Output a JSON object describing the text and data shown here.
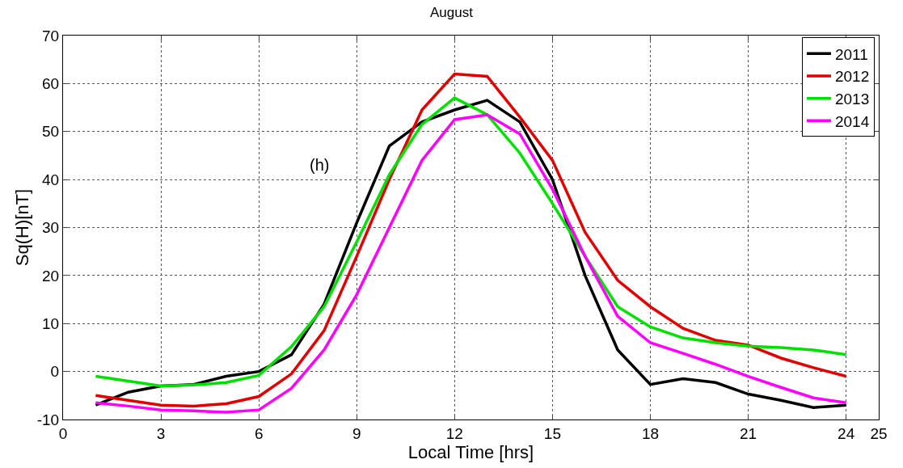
{
  "chart_data": {
    "type": "line",
    "title": "August",
    "xlabel": "Local Time [hrs]",
    "ylabel": "Sq(H)[nT]",
    "annotations": [
      "(h)"
    ],
    "x": [
      1,
      2,
      3,
      4,
      5,
      6,
      7,
      8,
      9,
      10,
      11,
      12,
      13,
      14,
      15,
      16,
      17,
      18,
      19,
      20,
      21,
      22,
      23,
      24
    ],
    "series": [
      {
        "name": "2011",
        "color": "#000000",
        "values": [
          -7,
          -4.3,
          -3,
          -2.7,
          -1,
          0,
          3.5,
          14,
          31,
          47,
          52,
          54.5,
          56.5,
          52,
          40,
          20,
          4.5,
          -2.7,
          -1.5,
          -2.3,
          -4.7,
          -6,
          -7.5,
          -7
        ]
      },
      {
        "name": "2012",
        "color": "#e00000",
        "values": [
          -5,
          -6,
          -7,
          -7.2,
          -6.7,
          -5.2,
          -0.5,
          8.5,
          24,
          40,
          54.5,
          62,
          61.5,
          53,
          44,
          29,
          19,
          13.5,
          9,
          6.5,
          5.5,
          2.8,
          0.8,
          -1
        ]
      },
      {
        "name": "2013",
        "color": "#00e000",
        "values": [
          -1,
          -2,
          -3,
          -2.8,
          -2.3,
          -0.8,
          5.2,
          13.5,
          27,
          41,
          51.5,
          57,
          53.5,
          45.5,
          35,
          24,
          13.5,
          9.3,
          7,
          6,
          5.3,
          5,
          4.5,
          3.5
        ]
      },
      {
        "name": "2014",
        "color": "#ff00ff",
        "values": [
          -6.5,
          -7.2,
          -8,
          -8.2,
          -8.5,
          -8,
          -3.5,
          4.5,
          16,
          30,
          44,
          52.5,
          53.5,
          49.5,
          38,
          24,
          11.5,
          6,
          3.8,
          1.5,
          -1,
          -3.3,
          -5.5,
          -6.5
        ]
      }
    ],
    "xlim": [
      0,
      25
    ],
    "xticks": [
      0,
      3,
      6,
      9,
      12,
      15,
      18,
      21,
      24,
      25
    ],
    "ylim": [
      -10,
      70
    ],
    "yticks": [
      -10,
      0,
      10,
      20,
      30,
      40,
      50,
      60,
      70
    ],
    "grid": true,
    "legend": "top right",
    "line_style": "solid",
    "marker": "none"
  }
}
